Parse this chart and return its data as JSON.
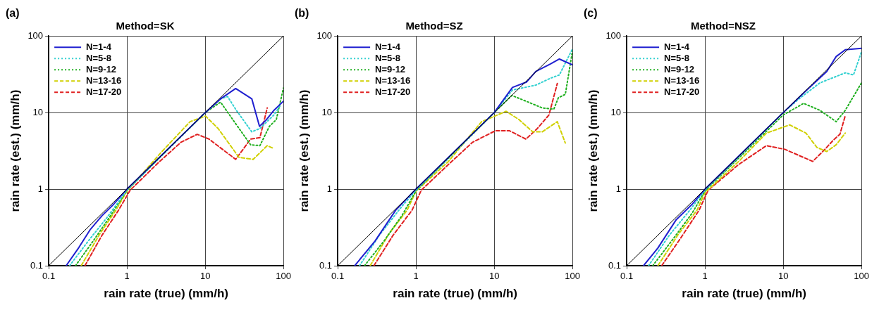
{
  "chart_data": [
    {
      "type": "line",
      "title": "(a)",
      "subtitle": "Method=SK",
      "xlabel": "rain rate (true) (mm/h)",
      "ylabel": "rain rate (est.) (mm/h)",
      "xlim": [
        0.1,
        100
      ],
      "ylim": [
        0.1,
        100
      ],
      "xticks": [
        0.1,
        1,
        10,
        100
      ],
      "yticks": [
        0.1,
        1,
        10,
        100
      ],
      "log": "xy",
      "grid": true,
      "legend": "top left",
      "series": [
        {
          "color": "#000000",
          "line_style": "solid",
          "x": [
            0.1,
            100
          ],
          "values": [
            0.1,
            100
          ]
        },
        {
          "name": "N=1-4",
          "color": "#2020d0",
          "line_style": "solid",
          "x": [
            0.167,
            0.243,
            0.342,
            0.48,
            0.68,
            1,
            10,
            15.7,
            24.5,
            39.4,
            49.4,
            59.4,
            75.5,
            100
          ],
          "values": [
            0.1,
            0.173,
            0.3,
            0.45,
            0.64,
            1,
            10,
            15.1,
            20.6,
            15.1,
            6.6,
            7.9,
            10.7,
            14.1
          ]
        },
        {
          "name": "N=5-8",
          "color": "#30d0d0",
          "line_style": "dotted",
          "x": [
            0.185,
            0.32,
            0.55,
            1,
            10,
            15.7,
            19.3,
            25,
            39.4,
            50,
            75.5,
            93
          ],
          "values": [
            0.1,
            0.21,
            0.42,
            0.97,
            10,
            15.1,
            16.2,
            10.7,
            5.6,
            6.2,
            9.3,
            12.7
          ]
        },
        {
          "name": "N=9-12",
          "color": "#20b020",
          "line_style": "dotted",
          "x": [
            0.22,
            0.37,
            0.59,
            1,
            10,
            15.7,
            23.5,
            38,
            50,
            66,
            81,
            100
          ],
          "values": [
            0.1,
            0.21,
            0.42,
            0.97,
            10,
            13.7,
            7.6,
            3.8,
            3.7,
            6.6,
            8.1,
            21
          ]
        },
        {
          "name": "N=13-16",
          "color": "#d0d000",
          "line_style": "dashed",
          "x": [
            0.26,
            0.45,
            0.72,
            1,
            2.8,
            6.4,
            10.1,
            14.6,
            27,
            41,
            62,
            75
          ],
          "values": [
            0.1,
            0.26,
            0.53,
            0.94,
            3.1,
            7.6,
            9,
            6.2,
            2.6,
            2.45,
            3.7,
            3.4
          ]
        },
        {
          "name": "N=17-20",
          "color": "#e02020",
          "line_style": "dashed",
          "x": [
            0.29,
            0.48,
            0.78,
            1.1,
            2.5,
            4.9,
            7.9,
            11.2,
            24.5,
            38,
            50,
            62
          ],
          "values": [
            0.1,
            0.25,
            0.53,
            0.97,
            2.2,
            4.1,
            5.2,
            4.5,
            2.45,
            4.5,
            4.7,
            11.5
          ]
        }
      ]
    },
    {
      "type": "line",
      "title": "(b)",
      "subtitle": "Method=SZ",
      "xlabel": "rain rate (true) (mm/h)",
      "ylabel": "rain rate (est.) (mm/h)",
      "xlim": [
        0.1,
        100
      ],
      "ylim": [
        0.1,
        100
      ],
      "xticks": [
        0.1,
        1,
        10,
        100
      ],
      "yticks": [
        0.1,
        1,
        10,
        100
      ],
      "log": "xy",
      "grid": true,
      "legend": "top left",
      "series": [
        {
          "color": "#000000",
          "line_style": "solid",
          "x": [
            0.1,
            100
          ],
          "values": [
            0.1,
            100
          ]
        },
        {
          "name": "N=1-4",
          "color": "#2020d0",
          "line_style": "solid",
          "x": [
            0.165,
            0.3,
            0.55,
            1,
            10,
            17.1,
            25.8,
            34,
            52,
            68,
            100
          ],
          "values": [
            0.1,
            0.21,
            0.53,
            1,
            10,
            21.3,
            25,
            34.5,
            43,
            50,
            42
          ]
        },
        {
          "name": "N=5-8",
          "color": "#30d0d0",
          "line_style": "dotted",
          "x": [
            0.19,
            0.34,
            0.63,
            1,
            10,
            17.1,
            34,
            52,
            68,
            100
          ],
          "values": [
            0.1,
            0.25,
            0.56,
            0.97,
            10,
            19.7,
            22.8,
            28,
            31,
            68
          ]
        },
        {
          "name": "N=9-12",
          "color": "#20b020",
          "line_style": "dotted",
          "x": [
            0.22,
            0.39,
            0.67,
            1,
            10,
            16.8,
            25.4,
            41,
            57.8,
            66,
            81,
            100
          ],
          "values": [
            0.1,
            0.21,
            0.46,
            0.95,
            10,
            16.7,
            14.1,
            11.5,
            11.1,
            15.6,
            17.3,
            64
          ]
        },
        {
          "name": "N=13-16",
          "color": "#d0d000",
          "line_style": "dashed",
          "x": [
            0.26,
            0.45,
            0.77,
            1,
            2.6,
            6.9,
            14.2,
            20.7,
            31,
            41,
            64,
            81
          ],
          "values": [
            0.1,
            0.26,
            0.53,
            0.94,
            2.3,
            7.6,
            10.4,
            8.1,
            5.6,
            5.6,
            7.6,
            4
          ]
        },
        {
          "name": "N=17-20",
          "color": "#e02020",
          "line_style": "dashed",
          "x": [
            0.29,
            0.51,
            0.89,
            1.17,
            2.6,
            5.3,
            10.4,
            15.6,
            25.4,
            35.6,
            50,
            64
          ],
          "values": [
            0.1,
            0.25,
            0.53,
            0.97,
            2.1,
            4.1,
            5.8,
            5.8,
            4.5,
            6.2,
            9.3,
            24
          ]
        }
      ]
    },
    {
      "type": "line",
      "title": "(c)",
      "subtitle": "Method=NSZ",
      "xlabel": "rain rate (true) (mm/h)",
      "ylabel": "rain rate (est.) (mm/h)",
      "xlim": [
        0.1,
        100
      ],
      "ylim": [
        0.1,
        100
      ],
      "xticks": [
        0.1,
        1,
        10,
        100
      ],
      "yticks": [
        0.1,
        1,
        10,
        100
      ],
      "log": "xy",
      "grid": true,
      "legend": "top left",
      "series": [
        {
          "color": "#000000",
          "line_style": "solid",
          "x": [
            0.1,
            100
          ],
          "values": [
            0.1,
            100
          ]
        },
        {
          "name": "N=1-4",
          "color": "#2020d0",
          "line_style": "solid",
          "x": [
            0.164,
            0.25,
            0.43,
            0.69,
            1,
            10,
            20.9,
            36,
            47.5,
            62,
            100
          ],
          "values": [
            0.1,
            0.17,
            0.4,
            0.64,
            1,
            10,
            20.6,
            34.4,
            54,
            66,
            69
          ]
        },
        {
          "name": "N=5-8",
          "color": "#30d0d0",
          "line_style": "dotted",
          "x": [
            0.19,
            0.35,
            0.64,
            1,
            10,
            15.9,
            29.4,
            62,
            79,
            100
          ],
          "values": [
            0.1,
            0.25,
            0.53,
            0.97,
            10,
            15.1,
            24.4,
            33,
            31,
            62
          ]
        },
        {
          "name": "N=9-12",
          "color": "#20b020",
          "line_style": "dotted",
          "x": [
            0.215,
            0.4,
            0.69,
            1,
            10,
            18.2,
            29.4,
            47.5,
            62,
            100
          ],
          "values": [
            0.1,
            0.23,
            0.49,
            0.95,
            9.3,
            13.2,
            10.7,
            7.6,
            10.7,
            24.4
          ]
        },
        {
          "name": "N=13-16",
          "color": "#d0d000",
          "line_style": "dashed",
          "x": [
            0.25,
            0.46,
            0.79,
            1,
            2.7,
            6.1,
            12.1,
            19.5,
            27,
            36,
            47.5,
            62
          ],
          "values": [
            0.1,
            0.26,
            0.53,
            0.9,
            2.3,
            5.4,
            6.9,
            5.4,
            3.5,
            3.1,
            3.8,
            5.4
          ]
        },
        {
          "name": "N=17-20",
          "color": "#e02020",
          "line_style": "dashed",
          "x": [
            0.28,
            0.49,
            0.84,
            1.1,
            2.7,
            6.1,
            10.6,
            23.8,
            34,
            44,
            53,
            62
          ],
          "values": [
            0.1,
            0.23,
            0.53,
            0.97,
            2.1,
            3.7,
            3.3,
            2.3,
            3.3,
            4.4,
            5.2,
            9.1
          ]
        }
      ]
    }
  ]
}
